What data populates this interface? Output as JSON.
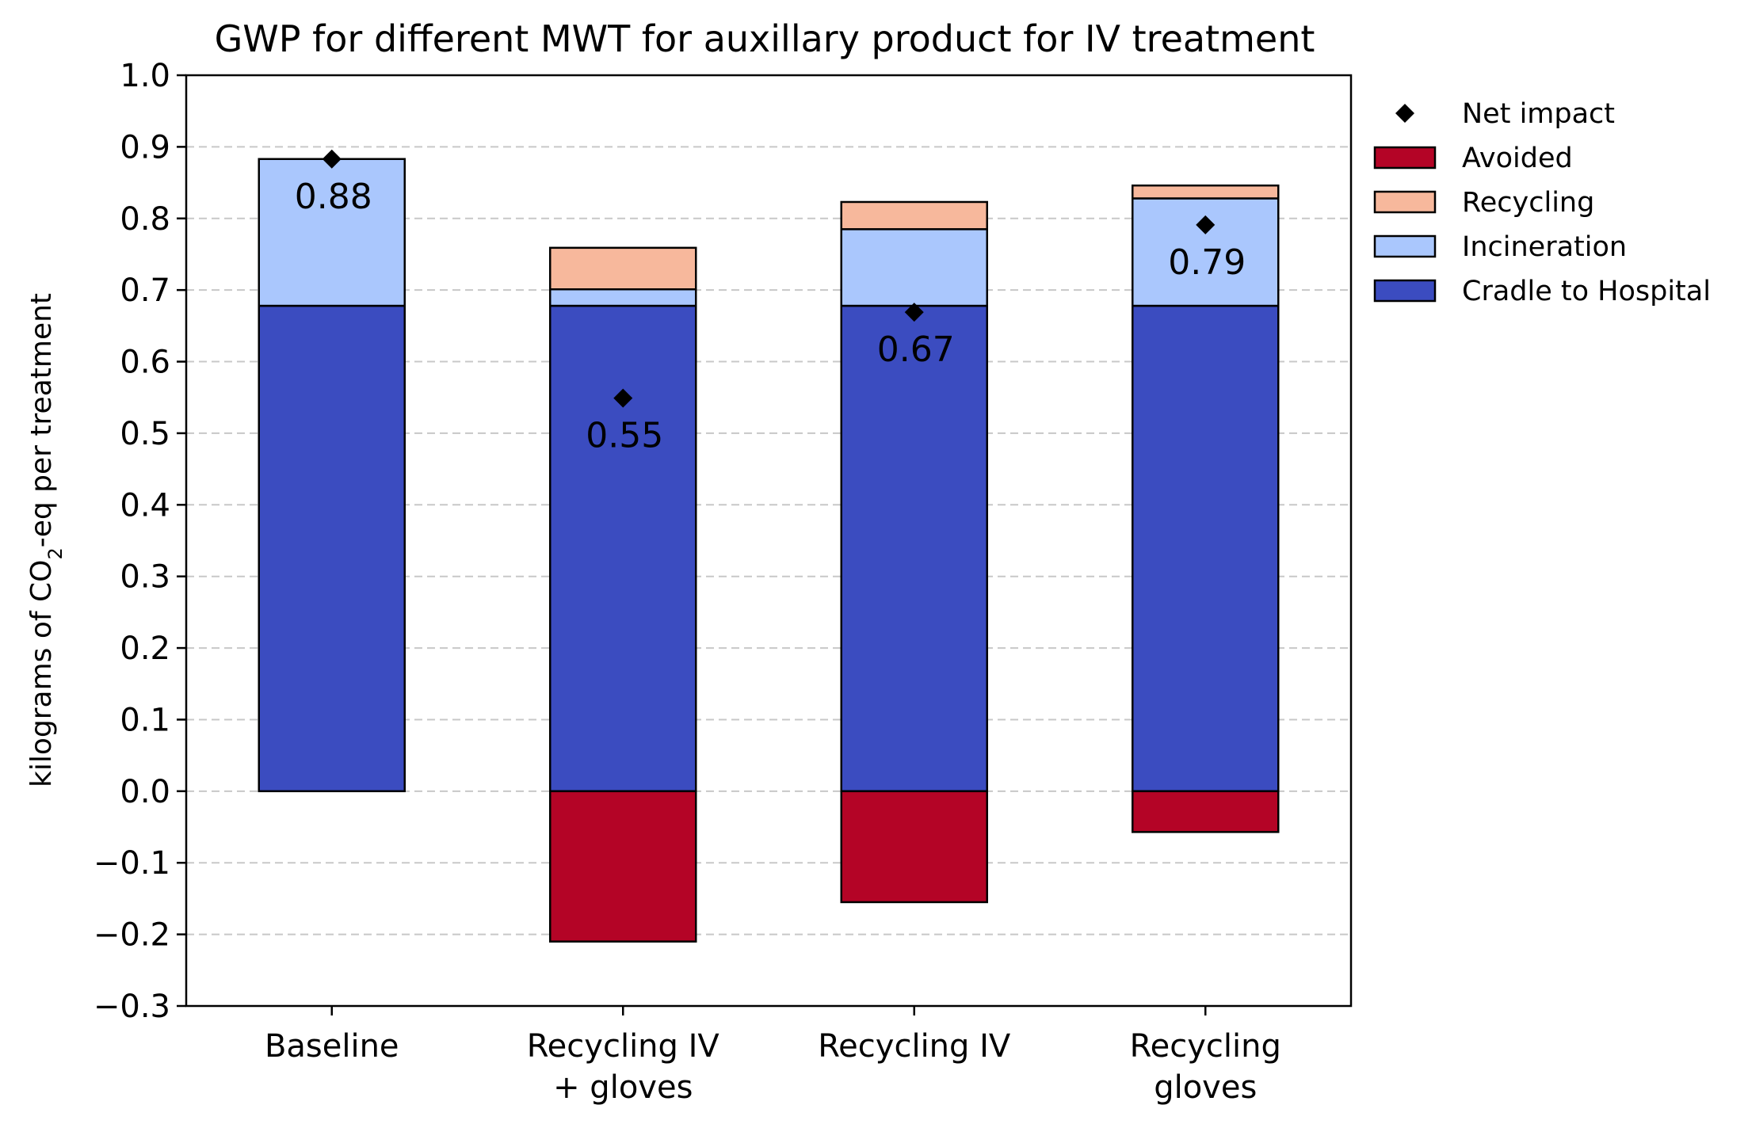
{
  "chart_data": {
    "type": "bar",
    "stacked": true,
    "title": "GWP for different MWT for auxillary product for IV treatment",
    "ylabel_prefix": "kilograms of CO",
    "ylabel_sub": "2",
    "ylabel_suffix": "-eq per treatment",
    "xlabel": "",
    "ylim": [
      -0.3,
      1.0
    ],
    "yticks": [
      -0.3,
      -0.2,
      -0.1,
      0.0,
      0.1,
      0.2,
      0.3,
      0.4,
      0.5,
      0.6,
      0.7,
      0.8,
      0.9,
      1.0
    ],
    "ytick_labels": [
      "−0.3",
      "−0.2",
      "−0.1",
      "0.0",
      "0.1",
      "0.2",
      "0.3",
      "0.4",
      "0.5",
      "0.6",
      "0.7",
      "0.8",
      "0.9",
      "1.0"
    ],
    "grid": "y-dashed",
    "legend_position": "outside-right",
    "categories": [
      [
        "Baseline"
      ],
      [
        "Recycling IV",
        "+ gloves"
      ],
      [
        "Recycling IV"
      ],
      [
        "Recycling",
        "gloves"
      ]
    ],
    "series": [
      {
        "name": "Cradle to Hospital",
        "color": "#3b4cc0",
        "values": [
          0.678,
          0.678,
          0.678,
          0.678
        ]
      },
      {
        "name": "Incineration",
        "color": "#aac7fd",
        "values": [
          0.205,
          0.023,
          0.107,
          0.15
        ]
      },
      {
        "name": "Recycling",
        "color": "#f7b89c",
        "values": [
          0.0,
          0.058,
          0.038,
          0.018
        ]
      },
      {
        "name": "Avoided",
        "color": "#b40426",
        "values": [
          0.0,
          -0.21,
          -0.155,
          -0.057
        ]
      }
    ],
    "net_impact": {
      "name": "Net impact",
      "values": [
        0.883,
        0.549,
        0.669,
        0.791
      ],
      "labels": [
        "0.88",
        "0.55",
        "0.67",
        "0.79"
      ]
    },
    "legend_order": [
      "Net impact",
      "Avoided",
      "Recycling",
      "Incineration",
      "Cradle to Hospital"
    ]
  }
}
